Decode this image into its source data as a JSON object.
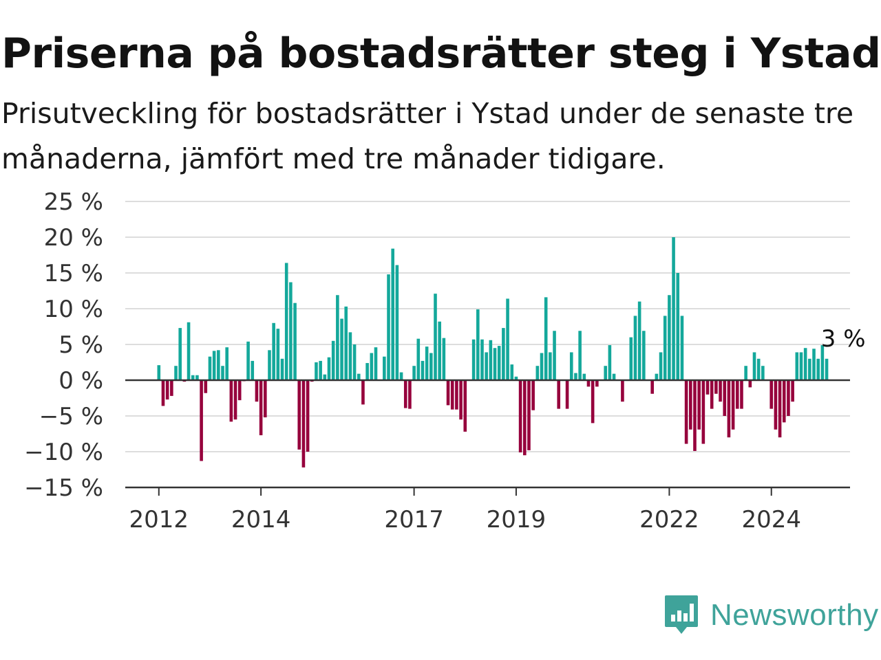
{
  "header": {
    "title": "Priserna på bostadsrätter steg i Ystad",
    "subtitle": "Prisutveckling för bostadsrätter i Ystad under de senaste tre månaderna, jämfört med tre månader tidigare."
  },
  "brand": {
    "name": "Newsworthy",
    "icon": "newsworthy-logo-icon",
    "color": "#3fa39a"
  },
  "colors": {
    "positive": "#14a89b",
    "negative": "#96003c",
    "grid": "#dddddd",
    "zero": "#333333"
  },
  "chart_data": {
    "type": "bar",
    "title": "Priserna på bostadsrätter steg i Ystad",
    "subtitle": "Prisutveckling för bostadsrätter i Ystad under de senaste tre månaderna, jämfört med tre månader tidigare.",
    "xlabel": "",
    "ylabel": "",
    "ylim": [
      -15,
      25
    ],
    "yticks": [
      25,
      20,
      15,
      10,
      5,
      0,
      -5,
      -10,
      -15
    ],
    "ytick_labels": [
      "25 %",
      "20 %",
      "15 %",
      "10 %",
      "5 %",
      "0 %",
      "−5 %",
      "−10 %",
      "−15 %"
    ],
    "xticks": [
      {
        "label": "2012",
        "year": 2012
      },
      {
        "label": "2014",
        "year": 2014
      },
      {
        "label": "2017",
        "year": 2017
      },
      {
        "label": "2019",
        "year": 2019
      },
      {
        "label": "2022",
        "year": 2022
      },
      {
        "label": "2024",
        "year": 2024
      }
    ],
    "grid": true,
    "start": "2012-01",
    "values": [
      2.1,
      -3.6,
      -2.7,
      -2.2,
      2.0,
      7.3,
      -0.2,
      8.1,
      0.7,
      0.7,
      -11.3,
      -1.8,
      3.3,
      4.1,
      4.2,
      2.0,
      4.6,
      -5.8,
      -5.5,
      -2.8,
      -0.1,
      5.4,
      2.7,
      -3.0,
      -7.7,
      -5.2,
      4.2,
      8.0,
      7.2,
      3.0,
      16.4,
      13.7,
      10.8,
      -9.7,
      -12.2,
      -10.0,
      -0.2,
      2.5,
      2.7,
      0.8,
      3.2,
      5.5,
      11.9,
      8.6,
      10.3,
      6.7,
      5.0,
      0.9,
      -3.4,
      2.4,
      3.8,
      4.6,
      0.1,
      3.3,
      14.8,
      18.4,
      16.1,
      1.1,
      -3.9,
      -4.0,
      2.0,
      5.8,
      2.7,
      4.7,
      3.8,
      12.1,
      8.2,
      5.9,
      -3.5,
      -4.1,
      -4.1,
      -5.5,
      -7.2,
      0.0,
      5.7,
      9.9,
      5.7,
      3.9,
      5.6,
      4.5,
      4.8,
      7.3,
      11.4,
      2.2,
      0.5,
      -10.1,
      -10.5,
      -9.8,
      -4.2,
      2.0,
      3.8,
      11.6,
      3.9,
      6.9,
      -4.0,
      0.0,
      -4.0,
      3.9,
      1.0,
      6.9,
      0.9,
      -0.9,
      -6.0,
      -0.9,
      0.0,
      2.0,
      4.9,
      0.9,
      0.0,
      -3.0,
      0.0,
      6.0,
      9.0,
      11.0,
      6.9,
      0.0,
      -1.9,
      0.9,
      3.9,
      9.0,
      11.9,
      20.0,
      15.0,
      9.0,
      -8.9,
      -6.9,
      -9.9,
      -6.9,
      -8.9,
      -2.0,
      -4.0,
      -1.9,
      -3.0,
      -5.0,
      -8.0,
      -6.9,
      -4.0,
      -4.0,
      2.0,
      -1.0,
      3.9,
      3.0,
      2.0,
      0.0,
      -4.0,
      -6.9,
      -8.0,
      -5.9,
      -5.0,
      -3.0,
      3.9,
      3.9,
      4.5,
      3.0,
      4.4,
      3.0,
      4.9,
      3.0
    ],
    "annotation": {
      "label": "3 %",
      "index": 157
    }
  }
}
